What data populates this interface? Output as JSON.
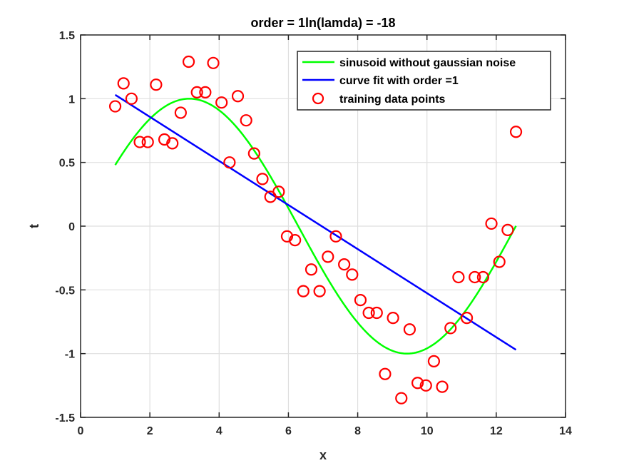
{
  "chart_data": {
    "type": "line",
    "title": "order = 1ln(lamda) = -18",
    "xlabel": "x",
    "ylabel": "t",
    "xlim": [
      0,
      14
    ],
    "ylim": [
      -1.5,
      1.5
    ],
    "xticks": [
      0,
      2,
      4,
      6,
      8,
      10,
      12,
      14
    ],
    "yticks": [
      -1.5,
      -1,
      -0.5,
      0,
      0.5,
      1,
      1.5
    ],
    "xtick_labels": [
      "0",
      "2",
      "4",
      "6",
      "8",
      "10",
      "12",
      "14"
    ],
    "ytick_labels": [
      "-1.5",
      "-1",
      "-0.5",
      "0",
      "0.5",
      "1",
      "1.5"
    ],
    "grid": true,
    "legend_position": "top-right",
    "series": [
      {
        "name": "sinusoid without gaussian noise",
        "kind": "line",
        "color": "#00ff00",
        "function": "sin(x/2)",
        "x_range": [
          1,
          12.57
        ]
      },
      {
        "name": "curve fit with order =1",
        "kind": "line",
        "color": "#0000ff",
        "x": [
          1,
          12.57
        ],
        "y": [
          1.03,
          -0.97
        ]
      },
      {
        "name": "training data points",
        "kind": "scatter",
        "color": "#ff0000",
        "x": [
          1.0,
          1.24,
          1.47,
          1.71,
          1.94,
          2.18,
          2.42,
          2.65,
          2.89,
          3.12,
          3.36,
          3.6,
          3.83,
          4.07,
          4.3,
          4.54,
          4.78,
          5.01,
          5.25,
          5.48,
          5.72,
          5.96,
          6.19,
          6.43,
          6.66,
          6.9,
          7.14,
          7.37,
          7.61,
          7.84,
          8.08,
          8.32,
          8.55,
          8.79,
          9.02,
          9.26,
          9.5,
          9.73,
          9.97,
          10.2,
          10.44,
          10.68,
          10.91,
          11.15,
          11.38,
          11.62,
          11.86,
          12.09,
          12.33,
          12.57
        ],
        "y": [
          0.94,
          1.12,
          1.0,
          0.66,
          0.66,
          1.11,
          0.68,
          0.65,
          0.89,
          1.29,
          1.05,
          1.05,
          1.28,
          0.97,
          0.5,
          1.02,
          0.83,
          0.57,
          0.37,
          0.23,
          0.27,
          -0.08,
          -0.11,
          -0.51,
          -0.34,
          -0.51,
          -0.24,
          -0.08,
          -0.3,
          -0.38,
          -0.58,
          -0.68,
          -0.68,
          -1.16,
          -0.72,
          -1.35,
          -0.81,
          -1.23,
          -1.25,
          -1.06,
          -1.26,
          -0.8,
          -0.4,
          -0.72,
          -0.4,
          -0.4,
          0.02,
          -0.28,
          -0.03,
          0.74
        ]
      }
    ]
  }
}
